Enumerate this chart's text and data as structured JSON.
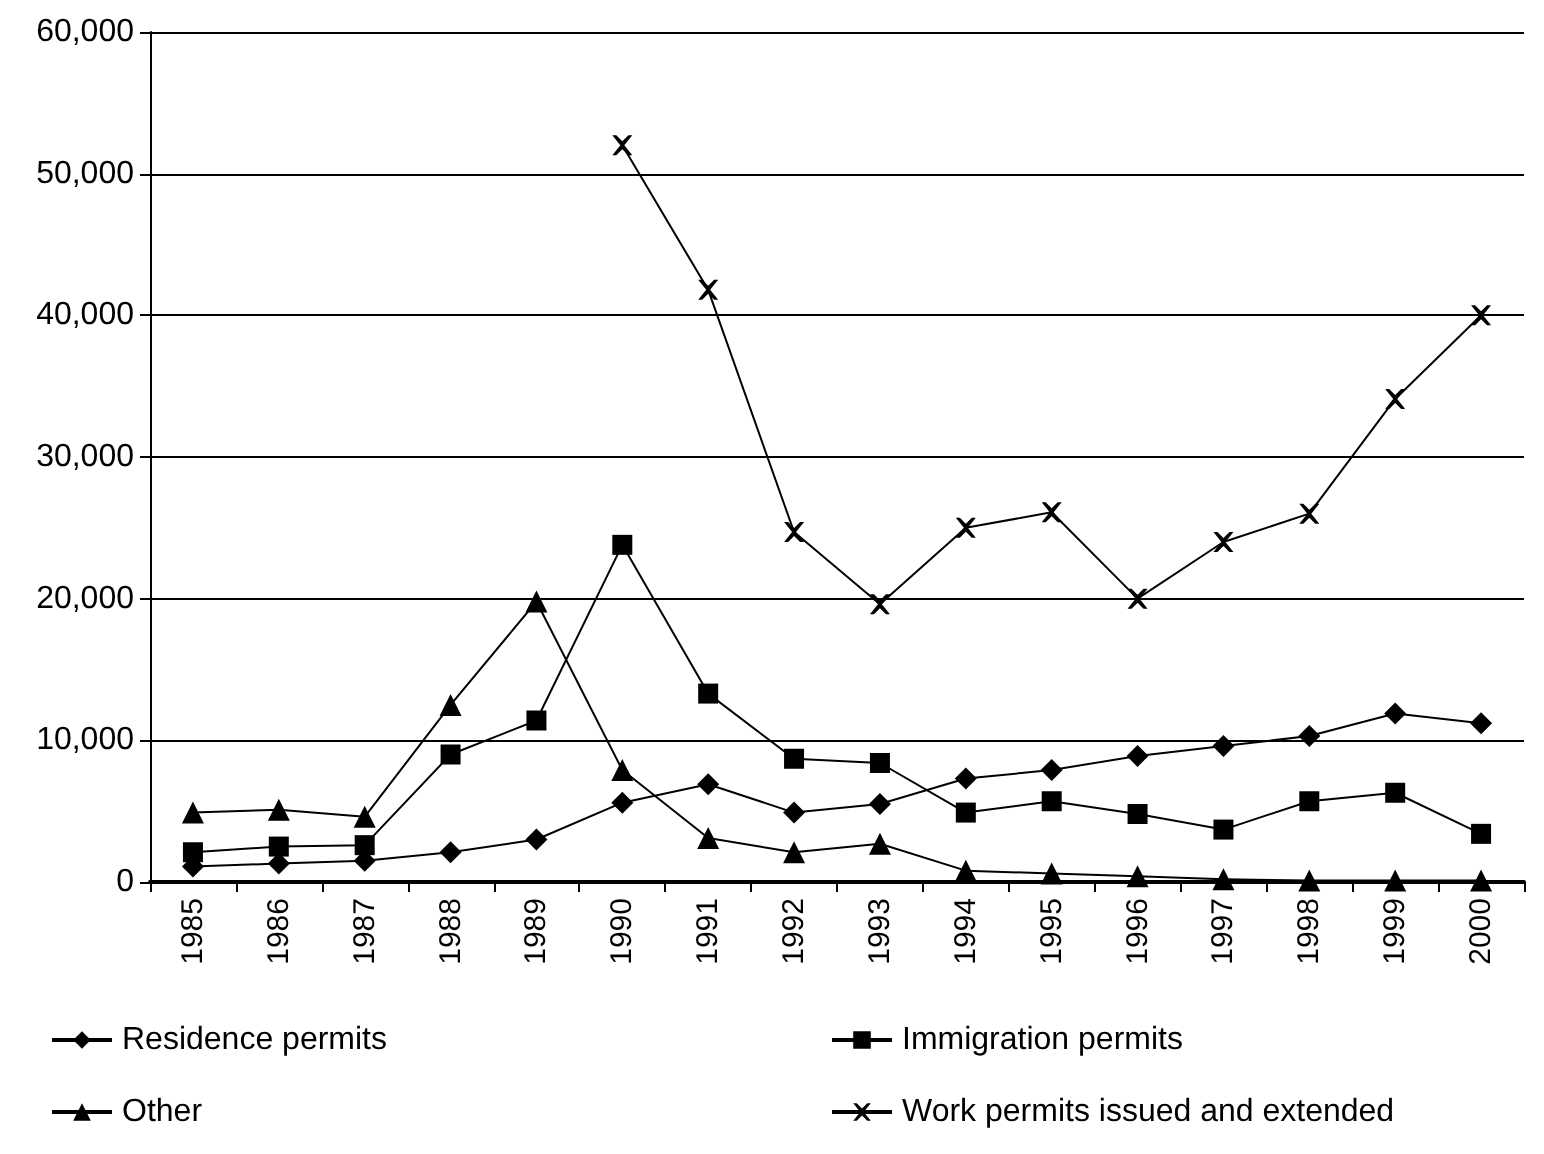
{
  "chart_data": {
    "type": "line",
    "categories": [
      "1985",
      "1986",
      "1987",
      "1988",
      "1989",
      "1990",
      "1991",
      "1992",
      "1993",
      "1994",
      "1995",
      "1996",
      "1997",
      "1998",
      "1999",
      "2000"
    ],
    "series": [
      {
        "name": "Residence permits",
        "color": "#000000",
        "marker": "diamond",
        "values": [
          1100,
          1300,
          1500,
          2100,
          3000,
          5600,
          6900,
          4900,
          5500,
          7300,
          7900,
          8900,
          9600,
          10300,
          11900,
          11200
        ]
      },
      {
        "name": "Immigration permits",
        "color": "#000000",
        "marker": "square",
        "values": [
          2100,
          2500,
          2600,
          9000,
          11400,
          23800,
          13300,
          8700,
          8400,
          4900,
          5700,
          4800,
          3700,
          5700,
          6300,
          3400
        ]
      },
      {
        "name": "Other",
        "color": "#000000",
        "marker": "triangle",
        "values": [
          4900,
          5100,
          4600,
          12500,
          19800,
          7900,
          3100,
          2100,
          2700,
          800,
          600,
          400,
          200,
          100,
          100,
          100
        ]
      },
      {
        "name": "Work permits issued and extended",
        "color": "#000000",
        "marker": "cross",
        "values": [
          null,
          null,
          null,
          null,
          null,
          52000,
          41800,
          24700,
          19600,
          25000,
          26100,
          20000,
          24000,
          26000,
          34100,
          40000
        ]
      }
    ],
    "ylim": [
      0,
      60000
    ],
    "yticks": [
      0,
      {
        "value": 10000,
        "label": "10,000"
      },
      {
        "value": 20000,
        "label": "20,000"
      },
      {
        "value": 30000,
        "label": "30,000"
      },
      {
        "value": 40000,
        "label": "40,000"
      },
      {
        "value": 50000,
        "label": "50,000"
      },
      {
        "value": 60000,
        "label": "60,000"
      }
    ],
    "grid": "y",
    "legend": "bottom",
    "line_style": "solid"
  }
}
